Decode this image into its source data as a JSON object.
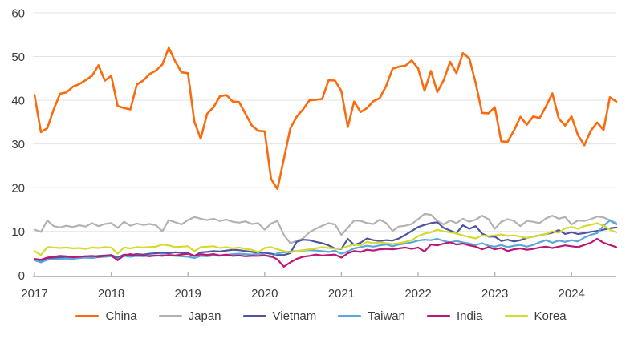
{
  "chart_data": {
    "type": "line",
    "title": "",
    "xlabel": "",
    "ylabel": "",
    "x_unit": "month",
    "x_start": "2017-01",
    "x_end": "2024-08",
    "n_points": 92,
    "ylim": [
      0,
      60
    ],
    "grid": "horizontal",
    "legend_position": "bottom",
    "gridline_color": "#e4e4e4",
    "axis_color": "#b3b3b3",
    "text_color": "#3d3d3d",
    "yticks": [
      {
        "value": 0,
        "label": "0"
      },
      {
        "value": 10,
        "label": "10"
      },
      {
        "value": 20,
        "label": "20"
      },
      {
        "value": 30,
        "label": "30"
      },
      {
        "value": 40,
        "label": "40"
      },
      {
        "value": 50,
        "label": "50"
      },
      {
        "value": 60,
        "label": "60"
      }
    ],
    "xticks": [
      {
        "month_index": 0,
        "label": "2017"
      },
      {
        "month_index": 12,
        "label": "2018"
      },
      {
        "month_index": 24,
        "label": "2019"
      },
      {
        "month_index": 36,
        "label": "2020"
      },
      {
        "month_index": 48,
        "label": "2021"
      },
      {
        "month_index": 60,
        "label": "2022"
      },
      {
        "month_index": 72,
        "label": "2023"
      },
      {
        "month_index": 84,
        "label": "2024"
      }
    ],
    "series": [
      {
        "name": "China",
        "color": "#f96b0d",
        "width": 2.6,
        "values": [
          41.2,
          32.7,
          33.6,
          37.9,
          41.5,
          41.8,
          43.1,
          43.7,
          44.6,
          45.6,
          48.0,
          44.5,
          45.6,
          38.7,
          38.2,
          37.9,
          43.6,
          44.5,
          46.0,
          46.8,
          48.2,
          52.0,
          48.9,
          46.4,
          46.2,
          35.1,
          31.2,
          36.9,
          38.4,
          40.9,
          41.2,
          39.7,
          39.6,
          36.9,
          34.2,
          33.0,
          32.9,
          22.0,
          19.7,
          26.5,
          33.5,
          36.2,
          37.9,
          40.0,
          40.1,
          40.3,
          44.6,
          44.5,
          42.1,
          33.9,
          39.7,
          37.3,
          38.2,
          39.8,
          40.5,
          43.3,
          47.2,
          47.7,
          47.9,
          49.1,
          47.3,
          42.2,
          46.7,
          41.9,
          44.6,
          48.8,
          46.2,
          50.8,
          49.6,
          44.0,
          37.1,
          37.0,
          38.4,
          30.6,
          30.5,
          33.1,
          36.2,
          34.4,
          36.3,
          35.9,
          38.6,
          41.6,
          35.8,
          34.2,
          36.3,
          32.0,
          29.7,
          33.0,
          34.9,
          33.2,
          40.7,
          39.7
        ]
      },
      {
        "name": "Japan",
        "color": "#b2b2b2",
        "width": 2.2,
        "values": [
          10.4,
          9.9,
          12.5,
          11.2,
          10.9,
          11.3,
          11.0,
          11.4,
          11.1,
          11.9,
          11.2,
          11.7,
          11.9,
          10.8,
          12.2,
          11.3,
          11.8,
          11.5,
          11.7,
          11.4,
          10.0,
          12.6,
          12.1,
          11.6,
          12.6,
          13.3,
          12.9,
          12.6,
          12.9,
          12.4,
          12.7,
          12.2,
          12.0,
          12.3,
          11.7,
          11.9,
          10.4,
          11.8,
          12.4,
          9.2,
          7.3,
          7.8,
          8.4,
          9.8,
          10.6,
          11.3,
          11.9,
          11.6,
          9.2,
          10.8,
          12.5,
          12.4,
          11.9,
          11.7,
          12.7,
          11.9,
          10.1,
          11.1,
          11.3,
          11.7,
          12.8,
          14.0,
          13.8,
          12.4,
          11.6,
          12.5,
          11.9,
          12.9,
          12.2,
          12.7,
          13.6,
          12.8,
          10.6,
          12.2,
          12.8,
          12.4,
          11.2,
          12.4,
          12.2,
          11.9,
          13.0,
          13.6,
          12.9,
          13.3,
          11.6,
          12.5,
          12.4,
          12.8,
          13.4,
          13.2,
          12.6,
          11.9
        ]
      },
      {
        "name": "Vietnam",
        "color": "#4f549e",
        "width": 2.2,
        "values": [
          3.6,
          3.0,
          3.8,
          3.9,
          4.0,
          4.1,
          4.0,
          4.2,
          4.3,
          4.2,
          4.4,
          4.5,
          4.6,
          4.0,
          4.7,
          4.6,
          4.8,
          4.7,
          4.9,
          5.0,
          5.1,
          5.0,
          5.2,
          5.1,
          5.0,
          4.4,
          5.2,
          5.3,
          5.5,
          5.4,
          5.6,
          5.8,
          5.7,
          5.5,
          5.3,
          5.1,
          5.1,
          4.9,
          4.6,
          4.6,
          5.0,
          7.6,
          8.1,
          8.0,
          7.6,
          7.3,
          6.8,
          6.1,
          6.0,
          8.3,
          6.9,
          7.4,
          8.4,
          8.0,
          7.8,
          8.0,
          7.9,
          8.4,
          9.2,
          10.1,
          11.0,
          11.5,
          11.9,
          12.1,
          10.8,
          10.2,
          9.6,
          11.4,
          10.6,
          11.2,
          9.5,
          8.8,
          8.8,
          7.8,
          8.1,
          7.7,
          8.0,
          8.5,
          8.8,
          9.1,
          9.4,
          9.7,
          10.3,
          9.4,
          9.8,
          9.4,
          9.6,
          9.9,
          10.1,
          10.4,
          10.7,
          10.9
        ]
      },
      {
        "name": "Taiwan",
        "color": "#58a8dc",
        "width": 2.2,
        "values": [
          3.4,
          2.9,
          3.5,
          3.6,
          3.7,
          3.8,
          3.7,
          3.9,
          4.0,
          3.9,
          4.1,
          4.2,
          4.3,
          3.7,
          4.4,
          4.2,
          4.4,
          4.3,
          4.5,
          4.4,
          4.6,
          4.5,
          4.4,
          4.3,
          4.2,
          3.9,
          4.4,
          4.3,
          4.5,
          4.4,
          4.6,
          4.8,
          4.9,
          4.8,
          4.7,
          4.9,
          4.6,
          4.1,
          5.0,
          5.2,
          5.4,
          5.5,
          5.6,
          5.7,
          5.6,
          5.5,
          5.3,
          5.6,
          4.9,
          5.4,
          6.1,
          6.4,
          6.7,
          6.5,
          6.8,
          7.0,
          6.6,
          7.0,
          7.2,
          7.5,
          7.9,
          8.1,
          8.0,
          8.3,
          7.8,
          7.5,
          7.8,
          7.5,
          7.2,
          6.9,
          7.3,
          6.7,
          6.5,
          6.9,
          6.4,
          6.7,
          6.9,
          6.5,
          6.9,
          7.5,
          8.0,
          7.4,
          7.9,
          7.6,
          8.0,
          7.7,
          8.6,
          9.2,
          9.6,
          11.3,
          12.5,
          11.6
        ]
      },
      {
        "name": "India",
        "color": "#bc1772",
        "width": 2.2,
        "values": [
          3.7,
          3.5,
          4.0,
          4.2,
          4.4,
          4.3,
          4.1,
          4.2,
          4.3,
          4.4,
          4.2,
          4.4,
          4.5,
          3.4,
          4.5,
          4.8,
          4.4,
          4.5,
          4.3,
          4.5,
          4.4,
          4.6,
          4.5,
          4.7,
          4.9,
          4.4,
          4.8,
          4.6,
          4.8,
          4.5,
          4.7,
          4.4,
          4.5,
          4.3,
          4.4,
          4.4,
          4.5,
          4.3,
          3.6,
          1.9,
          2.9,
          3.7,
          4.2,
          4.4,
          4.7,
          4.5,
          4.6,
          4.7,
          4.0,
          5.0,
          5.5,
          5.3,
          5.8,
          5.6,
          5.9,
          6.0,
          5.9,
          6.1,
          6.3,
          6.0,
          6.3,
          5.4,
          7.0,
          6.8,
          7.2,
          7.5,
          7.0,
          7.2,
          6.8,
          6.5,
          5.9,
          6.4,
          5.9,
          6.2,
          5.5,
          5.9,
          6.1,
          5.8,
          6.0,
          6.3,
          6.5,
          6.2,
          6.5,
          6.8,
          6.6,
          6.4,
          6.9,
          7.4,
          8.3,
          7.4,
          6.9,
          6.4
        ]
      },
      {
        "name": "Korea",
        "color": "#d4da2e",
        "width": 2.2,
        "values": [
          5.5,
          4.6,
          6.4,
          6.3,
          6.2,
          6.3,
          6.1,
          6.2,
          6.0,
          6.3,
          6.2,
          6.4,
          6.3,
          4.9,
          6.3,
          6.1,
          6.4,
          6.3,
          6.4,
          6.5,
          7.0,
          6.8,
          6.4,
          6.5,
          6.6,
          5.5,
          6.4,
          6.5,
          6.6,
          6.2,
          6.4,
          6.1,
          6.3,
          6.0,
          5.8,
          5.2,
          6.2,
          6.4,
          5.9,
          5.5,
          5.2,
          5.5,
          5.7,
          5.9,
          6.1,
          6.4,
          6.2,
          6.1,
          6.1,
          6.6,
          7.0,
          6.8,
          7.6,
          7.3,
          7.5,
          7.3,
          7.1,
          7.3,
          7.6,
          8.0,
          8.9,
          9.5,
          9.8,
          10.4,
          10.0,
          9.8,
          9.5,
          9.1,
          8.7,
          8.4,
          9.1,
          8.9,
          9.1,
          9.3,
          9.0,
          9.1,
          8.8,
          8.5,
          8.8,
          9.1,
          9.4,
          10.0,
          9.7,
          10.7,
          11.0,
          10.6,
          11.2,
          11.5,
          11.9,
          11.3,
          10.4,
          9.8
        ]
      }
    ]
  }
}
